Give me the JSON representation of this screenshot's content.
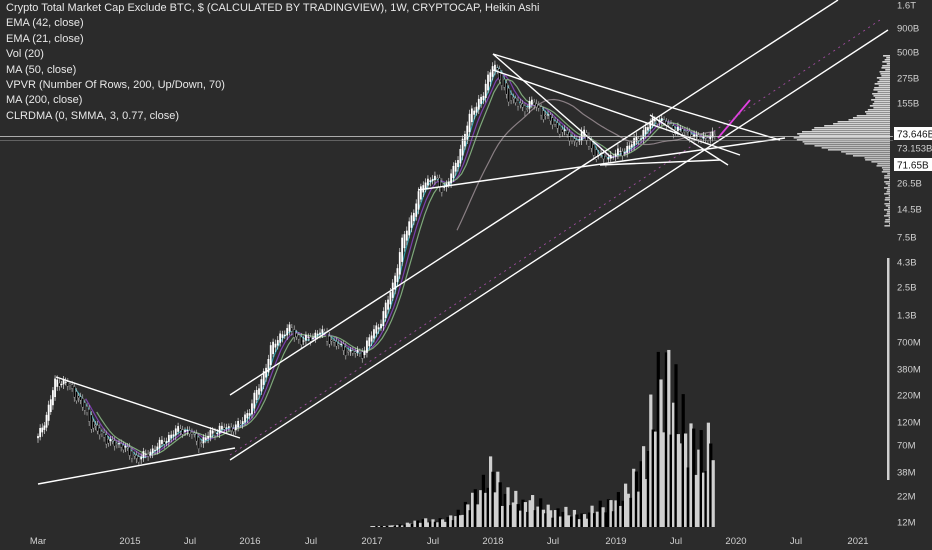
{
  "header": {
    "title": "Crypto Total Market Cap Exclude BTC, $ (CALCULATED BY TRADINGVIEW), 1W, CRYPTOCAP, Heikin Ashi",
    "indicators": [
      "EMA (42, close)",
      "EMA (21, close)",
      "Vol (20)",
      "MA (50, close)",
      "VPVR (Number Of Rows, 200, Up/Down, 70)",
      "MA (200, close)",
      "CLRDMA (0, SMMA, 3, 0.77, close)"
    ]
  },
  "colors": {
    "background": "#2b2b2b",
    "candle_up": "#ffffff",
    "candle_down": "#000000",
    "trendline": "#ffffff",
    "ema42": "#7b3fae",
    "ema21": "#2e9ca8",
    "ma50": "#7ea87a",
    "ma200": "#8a7f84",
    "forecast_magenta": "#e040e0",
    "volume_up": "#d0d0d0",
    "volume_down": "#000000"
  },
  "chart_data": {
    "type": "candlestick",
    "scale": "log",
    "y_axis": {
      "ticks": [
        "1.6T",
        "900B",
        "500B",
        "275B",
        "155B",
        "73.646B",
        "73.153B",
        "71.65B",
        "26.5B",
        "14.5B",
        "7.5B",
        "4.3B",
        "2.5B",
        "1.3B",
        "700M",
        "380M",
        "220M",
        "120M",
        "70M",
        "38M",
        "22M",
        "12M"
      ],
      "range": [
        "8M",
        "2.6T"
      ]
    },
    "x_axis": {
      "ticks": [
        "Mar",
        "2015",
        "Jul",
        "2016",
        "Jul",
        "2017",
        "Jul",
        "2018",
        "Jul",
        "2019",
        "Jul",
        "2020",
        "Jul",
        "2021"
      ]
    },
    "price_labels": [
      {
        "label": "73.646B",
        "value": 73.646,
        "style": "boxed"
      },
      {
        "label": "73.153B",
        "value": 73.153,
        "style": "plain"
      },
      {
        "label": "71.65B",
        "value": 71.65,
        "style": "boxed"
      }
    ],
    "series": [
      {
        "name": "Heikin Ashi close",
        "x": [
          2014.17,
          2014.25,
          2014.33,
          2014.42,
          2014.5,
          2014.58,
          2014.67,
          2014.75,
          2014.83,
          2014.92,
          2015.0,
          2015.08,
          2015.17,
          2015.25,
          2015.33,
          2015.42,
          2015.5,
          2015.58,
          2015.67,
          2015.75,
          2015.83,
          2015.92,
          2016.0,
          2016.08,
          2016.17,
          2016.25,
          2016.33,
          2016.42,
          2016.5,
          2016.58,
          2016.67,
          2016.75,
          2016.83,
          2016.92,
          2017.0,
          2017.08,
          2017.17,
          2017.25,
          2017.33,
          2017.42,
          2017.5,
          2017.58,
          2017.67,
          2017.75,
          2017.83,
          2017.92,
          2018.0,
          2018.08,
          2018.17,
          2018.25,
          2018.33,
          2018.42,
          2018.5,
          2018.58,
          2018.67,
          2018.75,
          2018.83,
          2018.92,
          2019.0,
          2019.08,
          2019.17,
          2019.25,
          2019.33,
          2019.42,
          2019.5,
          2019.58,
          2019.67,
          2019.75,
          2019.83
        ],
        "y": [
          0.08,
          0.14,
          0.3,
          0.28,
          0.22,
          0.16,
          0.1,
          0.085,
          0.07,
          0.07,
          0.055,
          0.05,
          0.06,
          0.07,
          0.085,
          0.1,
          0.09,
          0.07,
          0.09,
          0.1,
          0.1,
          0.11,
          0.16,
          0.27,
          0.6,
          0.85,
          0.95,
          0.7,
          0.8,
          0.9,
          0.7,
          0.62,
          0.55,
          0.55,
          0.85,
          1.2,
          2.6,
          7.0,
          13.0,
          26.0,
          30.0,
          22.0,
          34.0,
          70.0,
          140.0,
          190.0,
          420.0,
          220.0,
          160.0,
          140.0,
          160.0,
          120.0,
          100.0,
          80.0,
          65.0,
          80.0,
          47.0,
          45.0,
          50.0,
          55.0,
          70.0,
          88.0,
          115.0,
          95.0,
          85.0,
          82.0,
          70.0,
          73.6,
          73.6
        ],
        "unit": "B"
      },
      {
        "name": "EMA (42, close)",
        "unit": "B"
      },
      {
        "name": "EMA (21, close)",
        "unit": "B"
      },
      {
        "name": "MA (50, close)",
        "unit": "B"
      },
      {
        "name": "MA (200, close)",
        "unit": "B"
      }
    ],
    "volume": {
      "name": "Vol (20)",
      "x": [
        2017.0,
        2017.08,
        2017.17,
        2017.25,
        2017.33,
        2017.42,
        2017.5,
        2017.58,
        2017.67,
        2017.75,
        2017.83,
        2017.92,
        2018.0,
        2018.08,
        2018.17,
        2018.25,
        2018.33,
        2018.42,
        2018.5,
        2018.58,
        2018.67,
        2018.75,
        2018.83,
        2018.92,
        2019.0,
        2019.08,
        2019.17,
        2019.25,
        2019.33,
        2019.42,
        2019.5,
        2019.58,
        2019.67,
        2019.75,
        2019.83
      ],
      "y": [
        1,
        1,
        2,
        3,
        6,
        10,
        8,
        10,
        14,
        22,
        40,
        55,
        80,
        45,
        40,
        30,
        35,
        28,
        20,
        22,
        18,
        15,
        25,
        30,
        35,
        45,
        70,
        95,
        180,
        210,
        170,
        130,
        110,
        95,
        150
      ],
      "relative": true
    },
    "legend_position": "top-left",
    "grid": false
  }
}
